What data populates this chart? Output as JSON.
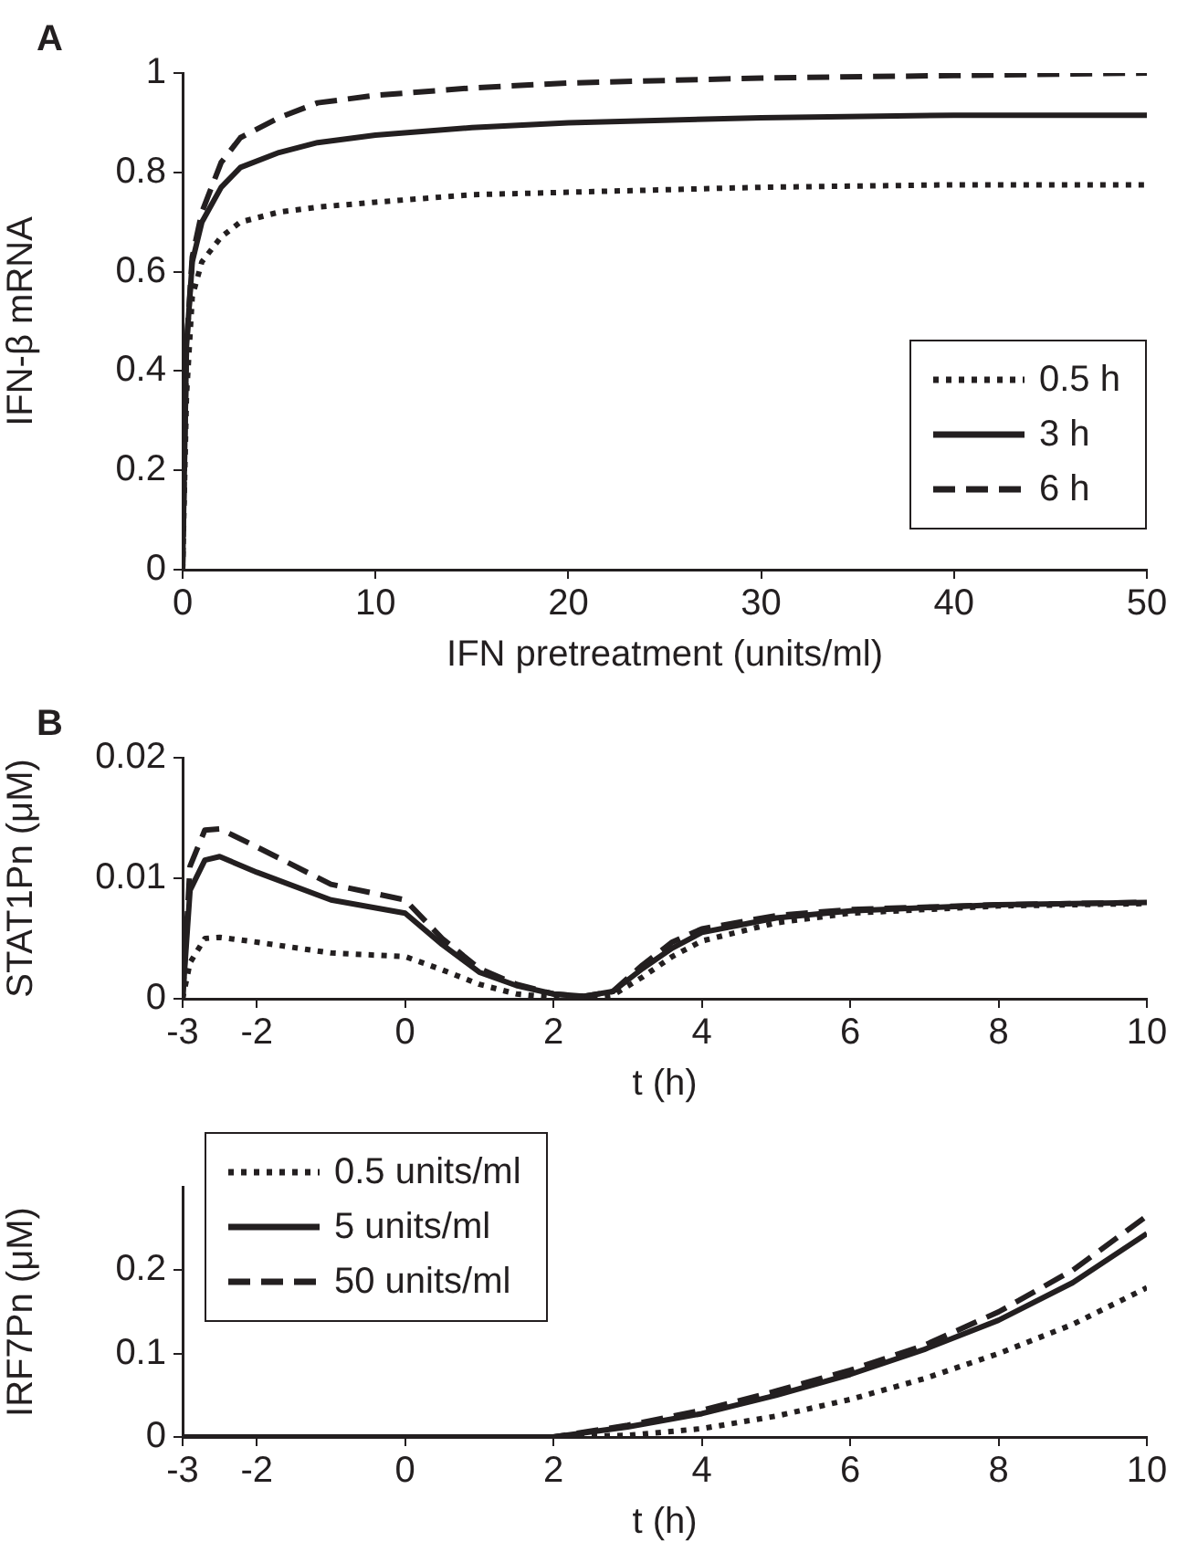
{
  "chart_data": [
    {
      "type": "line",
      "xlabel": "IFN pretreatment (units/ml)",
      "ylabel": "IFN-β mRNA",
      "annotations": [
        "A"
      ],
      "xlim": [
        0,
        50
      ],
      "xticks": [
        0,
        10,
        20,
        30,
        40,
        50
      ],
      "ylim": [
        0,
        1
      ],
      "yticks": [
        0,
        0.2,
        0.4,
        0.6,
        0.8,
        1
      ],
      "grid": false,
      "legend": "bottom right",
      "marker": "none",
      "x": [
        0,
        0.2,
        0.5,
        1,
        2,
        3,
        5,
        7,
        10,
        15,
        20,
        30,
        40,
        50
      ],
      "series": [
        {
          "name": "0.5 h",
          "color": "#231f20",
          "line_style": "dotted",
          "values": [
            0,
            0.35,
            0.55,
            0.62,
            0.67,
            0.7,
            0.72,
            0.73,
            0.74,
            0.755,
            0.76,
            0.77,
            0.775,
            0.775
          ]
        },
        {
          "name": "3 h",
          "color": "#231f20",
          "line_style": "solid",
          "values": [
            0,
            0.45,
            0.62,
            0.7,
            0.77,
            0.81,
            0.84,
            0.86,
            0.875,
            0.89,
            0.9,
            0.91,
            0.915,
            0.915
          ]
        },
        {
          "name": "6 h",
          "color": "#231f20",
          "line_style": "dashed",
          "values": [
            0,
            0.45,
            0.63,
            0.72,
            0.82,
            0.87,
            0.91,
            0.94,
            0.955,
            0.97,
            0.98,
            0.99,
            0.995,
            1.0
          ]
        }
      ]
    },
    {
      "type": "line",
      "xlabel": "t (h)",
      "ylabel": "STAT1Pn (μM)",
      "annotations": [
        "B"
      ],
      "xlim": [
        -3,
        10
      ],
      "xticks": [
        -3,
        -2,
        0,
        2,
        4,
        6,
        8,
        10
      ],
      "ylim": [
        0,
        0.02
      ],
      "yticks": [
        0,
        0.01,
        0.02
      ],
      "grid": false,
      "legend": false,
      "marker": "none",
      "x": [
        -3,
        -2.9,
        -2.7,
        -2.5,
        -2,
        -1,
        0,
        0.5,
        1,
        1.5,
        2,
        2.4,
        2.8,
        3.2,
        3.6,
        4,
        5,
        6,
        8,
        10
      ],
      "series": [
        {
          "color": "#231f20",
          "line_style": "dotted",
          "values": [
            0,
            0.003,
            0.005,
            0.0051,
            0.0047,
            0.0038,
            0.0035,
            0.0024,
            0.0012,
            0.0004,
            0.0001,
            0,
            0.0003,
            0.0018,
            0.0035,
            0.0048,
            0.0063,
            0.0071,
            0.0077,
            0.0079
          ]
        },
        {
          "color": "#231f20",
          "line_style": "solid",
          "values": [
            0,
            0.009,
            0.0115,
            0.0118,
            0.0105,
            0.0082,
            0.0071,
            0.0045,
            0.0022,
            0.0011,
            0.0004,
            0.0002,
            0.0006,
            0.0025,
            0.0042,
            0.0055,
            0.0067,
            0.0073,
            0.0078,
            0.008
          ]
        },
        {
          "color": "#231f20",
          "line_style": "dashed",
          "values": [
            0,
            0.011,
            0.014,
            0.0141,
            0.0126,
            0.0095,
            0.0082,
            0.005,
            0.0025,
            0.0012,
            0.0004,
            0.0002,
            0.0006,
            0.0028,
            0.0047,
            0.0058,
            0.0069,
            0.0074,
            0.0078,
            0.008
          ]
        }
      ]
    },
    {
      "type": "line",
      "xlabel": "t (h)",
      "ylabel": "IRF7Pn (μM)",
      "xlim": [
        -3,
        10
      ],
      "xticks": [
        -3,
        -2,
        0,
        2,
        4,
        6,
        8,
        10
      ],
      "ylim": [
        0,
        0.3
      ],
      "yticks": [
        0,
        0.1,
        0.2
      ],
      "grid": false,
      "legend": "top left",
      "marker": "none",
      "x": [
        -3,
        2,
        3,
        4,
        5,
        6,
        7,
        8,
        9,
        10
      ],
      "series": [
        {
          "name": "0.5 units/ml",
          "color": "#231f20",
          "line_style": "dotted",
          "values": [
            0,
            0,
            0.002,
            0.01,
            0.025,
            0.045,
            0.07,
            0.1,
            0.135,
            0.179
          ]
        },
        {
          "name": "5 units/ml",
          "color": "#231f20",
          "line_style": "solid",
          "values": [
            0,
            0,
            0.012,
            0.028,
            0.05,
            0.075,
            0.105,
            0.14,
            0.185,
            0.244
          ]
        },
        {
          "name": "50 units/ml",
          "color": "#231f20",
          "line_style": "dashed",
          "values": [
            0,
            0,
            0.014,
            0.032,
            0.055,
            0.08,
            0.11,
            0.15,
            0.2,
            0.265
          ]
        }
      ]
    }
  ]
}
